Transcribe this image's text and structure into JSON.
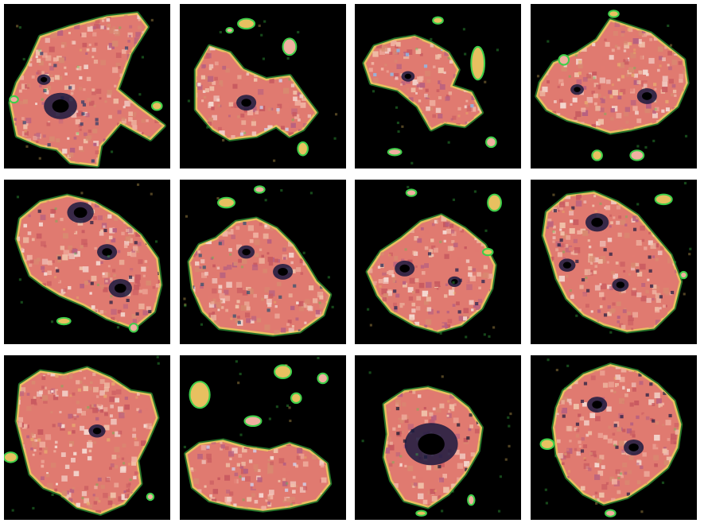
{
  "figure": {
    "description_kind": "grid of generated sample images",
    "rows": 3,
    "columns": 4,
    "tiles": [
      {
        "index": 0,
        "dominant": "salmon-pink",
        "accent": "#2a3a6a"
      },
      {
        "index": 1,
        "dominant": "salmon-pink",
        "accent": "#cfe0ff"
      },
      {
        "index": 2,
        "dominant": "salmon-pink",
        "accent": "#7fc8ff"
      },
      {
        "index": 3,
        "dominant": "salmon-pink",
        "accent": "#e8b070"
      },
      {
        "index": 4,
        "dominant": "salmon-pink",
        "accent": "#1a1a40"
      },
      {
        "index": 5,
        "dominant": "salmon-pink",
        "accent": "#2a5070"
      },
      {
        "index": 6,
        "dominant": "salmon-pink",
        "accent": "#1a2050"
      },
      {
        "index": 7,
        "dominant": "salmon-pink",
        "accent": "#1a1a40"
      },
      {
        "index": 8,
        "dominant": "salmon-pink",
        "accent": "#e8b070"
      },
      {
        "index": 9,
        "dominant": "salmon-pink",
        "accent": "#cfe0ff"
      },
      {
        "index": 10,
        "dominant": "salmon-pink",
        "accent": "#101830"
      },
      {
        "index": 11,
        "dominant": "salmon-pink",
        "accent": "#1a1a40"
      }
    ],
    "palette": {
      "background": "#000000",
      "separator": "#ffffff",
      "body_main": "#e07a70",
      "body_light": "#f0b0a0",
      "body_pale": "#f4d8d0",
      "edge_green": "#3fcf4a",
      "edge_yellow": "#e8c060",
      "shadow": "#1a1a40"
    }
  }
}
